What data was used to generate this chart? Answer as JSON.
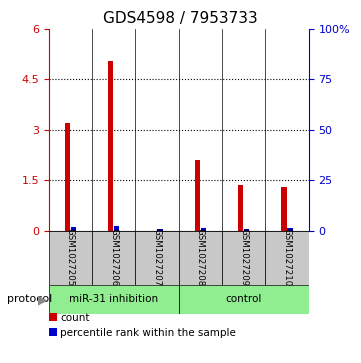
{
  "title": "GDS4598 / 7953733",
  "samples": [
    "GSM1027205",
    "GSM1027206",
    "GSM1027207",
    "GSM1027208",
    "GSM1027209",
    "GSM1027210"
  ],
  "red_values": [
    3.2,
    5.05,
    0.0,
    2.1,
    1.35,
    1.3
  ],
  "blue_pct": [
    1.8,
    2.2,
    0.7,
    1.3,
    0.8,
    1.0
  ],
  "group_labels": [
    "miR-31 inhibition",
    "control"
  ],
  "protocol_label": "protocol",
  "legend_red": "count",
  "legend_blue": "percentile rank within the sample",
  "ylim_left": [
    0,
    6
  ],
  "ylim_right": [
    0,
    100
  ],
  "yticks_left": [
    0,
    1.5,
    3.0,
    4.5,
    6.0
  ],
  "ytick_labels_left": [
    "0",
    "1.5",
    "3",
    "4.5",
    "6"
  ],
  "ytick_labels_right": [
    "0",
    "25",
    "50",
    "75",
    "100%"
  ],
  "red_color": "#CC0000",
  "blue_color": "#0000CC",
  "bg_gray": "#C8C8C8",
  "green_color": "#90EE90",
  "title_fontsize": 11,
  "tick_fontsize": 8,
  "label_fontsize": 8
}
